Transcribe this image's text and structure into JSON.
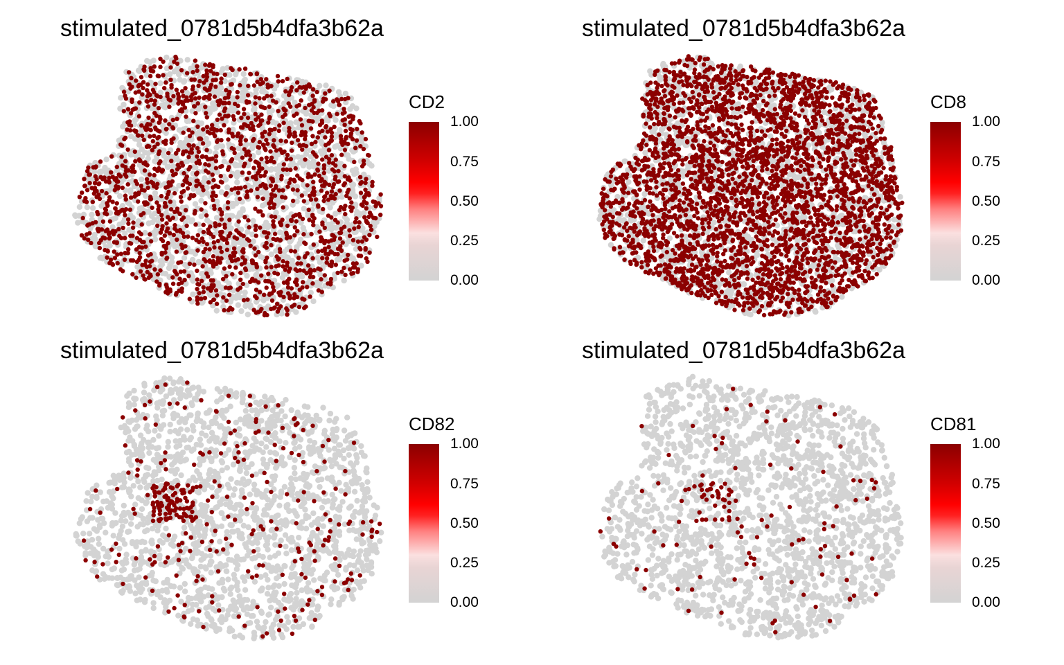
{
  "colors": {
    "low": "#d3d3d3",
    "high": "#8b0000",
    "gradient": [
      "#d3d3d3",
      "#f6e8e8",
      "#ff3030",
      "#ff0000",
      "#8b0000"
    ]
  },
  "chart_data": [
    {
      "type": "scatter",
      "title": "stimulated_0781d5b4dfa3b62a",
      "legend": {
        "title": "CD2",
        "ticks": [
          "1.00",
          "0.75",
          "0.50",
          "0.25",
          "0.00"
        ],
        "range": [
          0,
          1
        ],
        "placement": "right"
      },
      "series": [
        {
          "level": 0.0,
          "density": "all-cells"
        },
        {
          "level": 1.0,
          "density": 0.42
        }
      ],
      "grid": false
    },
    {
      "type": "scatter",
      "title": "stimulated_0781d5b4dfa3b62a",
      "legend": {
        "title": "CD8",
        "ticks": [
          "1.00",
          "0.75",
          "0.50",
          "0.25",
          "0.00"
        ],
        "range": [
          0,
          1
        ],
        "placement": "right"
      },
      "series": [
        {
          "level": 0.0,
          "density": "all-cells"
        },
        {
          "level": 1.0,
          "density": 0.85
        }
      ],
      "grid": false
    },
    {
      "type": "scatter",
      "title": "stimulated_0781d5b4dfa3b62a",
      "legend": {
        "title": "CD82",
        "ticks": [
          "1.00",
          "0.75",
          "0.50",
          "0.25",
          "0.00"
        ],
        "range": [
          0,
          1
        ],
        "placement": "right"
      },
      "series": [
        {
          "level": 0.0,
          "density": "all-cells"
        },
        {
          "level": 1.0,
          "density": 0.08
        }
      ],
      "grid": false
    },
    {
      "type": "scatter",
      "title": "stimulated_0781d5b4dfa3b62a",
      "legend": {
        "title": "CD81",
        "ticks": [
          "1.00",
          "0.75",
          "0.50",
          "0.25",
          "0.00"
        ],
        "range": [
          0,
          1
        ],
        "placement": "right"
      },
      "series": [
        {
          "level": 0.0,
          "density": "all-cells"
        },
        {
          "level": 1.0,
          "density": 0.03
        }
      ],
      "grid": false
    }
  ]
}
